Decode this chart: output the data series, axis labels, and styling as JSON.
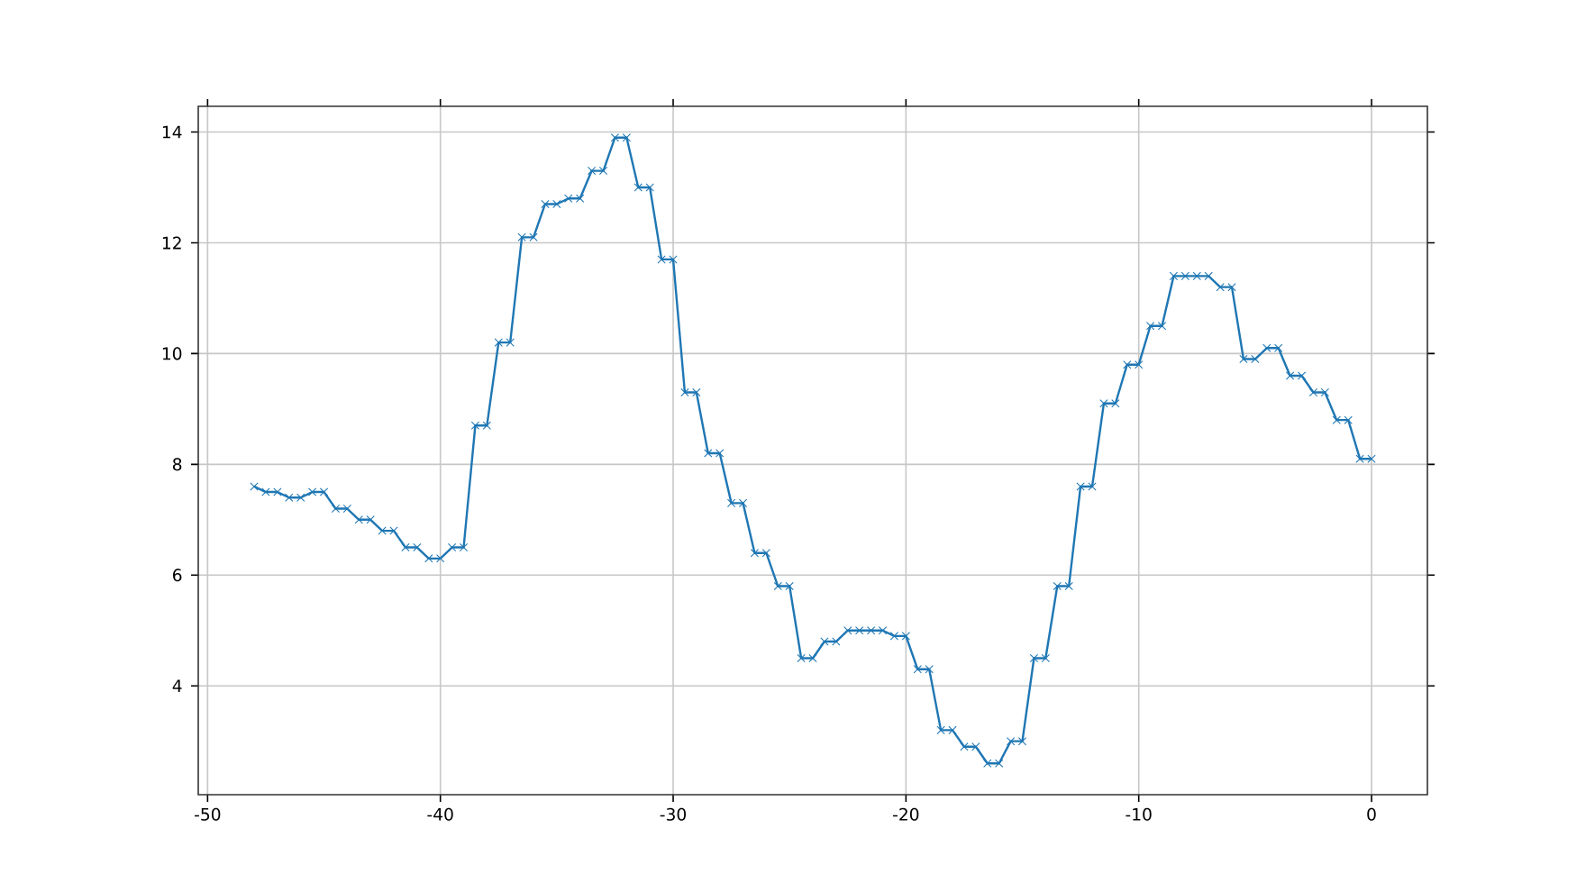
{
  "chart_data": {
    "type": "line",
    "color": "#1f77b4",
    "marker": "cross",
    "line_style": "solid",
    "grid": true,
    "x": [
      -48,
      -47.5,
      -47,
      -46.5,
      -46,
      -45.5,
      -45,
      -44.5,
      -44,
      -43.5,
      -43,
      -42.5,
      -42,
      -41.5,
      -41,
      -40.5,
      -40,
      -39.5,
      -39,
      -38.5,
      -38,
      -37.5,
      -37,
      -36.5,
      -36,
      -35.5,
      -35,
      -34.5,
      -34,
      -33.5,
      -33,
      -32.5,
      -32,
      -31.5,
      -31,
      -30.5,
      -30,
      -29.5,
      -29,
      -28.5,
      -28,
      -27.5,
      -27,
      -26.5,
      -26,
      -25.5,
      -25,
      -24.5,
      -24,
      -23.5,
      -23,
      -22.5,
      -22,
      -21.5,
      -21,
      -20.5,
      -20,
      -19.5,
      -19,
      -18.5,
      -18,
      -17.5,
      -17,
      -16.5,
      -16,
      -15.5,
      -15,
      -14.5,
      -14,
      -13.5,
      -13,
      -12.5,
      -12,
      -11.5,
      -11,
      -10.5,
      -10,
      -9.5,
      -9,
      -8.5,
      -8,
      -7.5,
      -7,
      -6.5,
      -6,
      -5.5,
      -5,
      -4.5,
      -4,
      -3.5,
      -3,
      -2.5,
      -2,
      -1.5,
      -1,
      -0.5,
      0
    ],
    "values": [
      7.6,
      7.5,
      7.5,
      7.4,
      7.4,
      7.5,
      7.5,
      7.2,
      7.2,
      7.0,
      7.0,
      6.8,
      6.8,
      6.5,
      6.5,
      6.3,
      6.3,
      6.5,
      6.5,
      8.7,
      8.7,
      10.2,
      10.2,
      12.1,
      12.1,
      12.7,
      12.7,
      12.8,
      12.8,
      13.3,
      13.3,
      13.9,
      13.9,
      13.0,
      13.0,
      11.7,
      11.7,
      9.3,
      9.3,
      8.2,
      8.2,
      7.3,
      7.3,
      6.4,
      6.4,
      5.8,
      5.8,
      4.5,
      4.5,
      4.8,
      4.8,
      5.0,
      5.0,
      5.0,
      5.0,
      4.9,
      4.9,
      4.3,
      4.3,
      3.2,
      3.2,
      2.9,
      2.9,
      2.6,
      2.6,
      3.0,
      3.0,
      4.5,
      4.5,
      5.8,
      5.8,
      7.6,
      7.6,
      9.1,
      9.1,
      9.8,
      9.8,
      10.5,
      10.5,
      11.4,
      11.4,
      11.4,
      11.4,
      11.2,
      11.2,
      9.9,
      9.9,
      10.1,
      10.1,
      9.6,
      9.6,
      9.3,
      9.3,
      8.8,
      8.8,
      8.1,
      8.1
    ],
    "xlim": [
      -50.4,
      2.4
    ],
    "ylim": [
      2.035,
      14.465
    ],
    "xticks": [
      -50,
      -40,
      -30,
      -20,
      -10,
      0
    ],
    "yticks": [
      4,
      6,
      8,
      10,
      12,
      14
    ]
  }
}
